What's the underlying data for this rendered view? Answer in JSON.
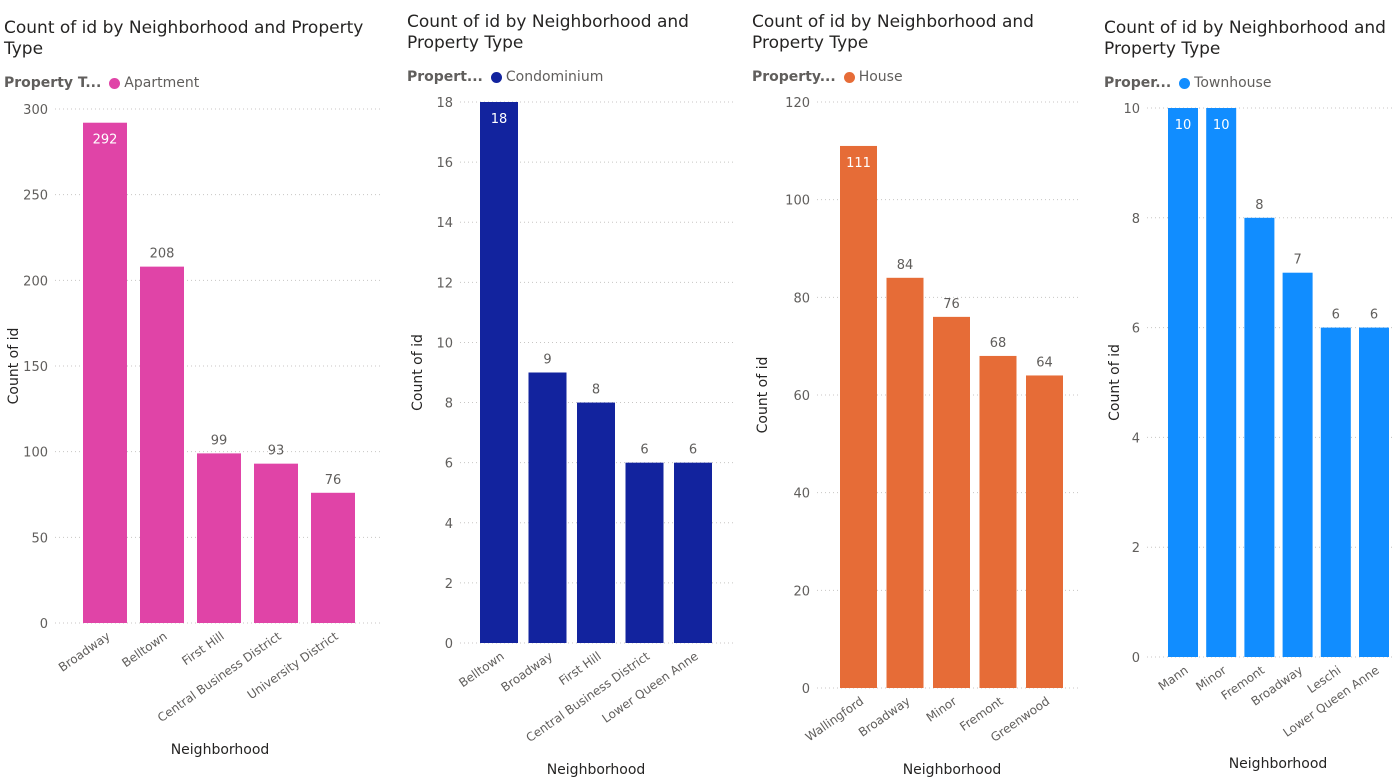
{
  "chart_data": [
    {
      "type": "bar",
      "title": "Count of id by Neighborhood and Property Type",
      "legend": {
        "title": "Property T...",
        "label": "Apartment"
      },
      "xlabel": "Neighborhood",
      "ylabel": "Count of id",
      "ylim": [
        0,
        300
      ],
      "yticks": [
        0,
        50,
        100,
        150,
        200,
        250,
        300
      ],
      "categories": [
        "Broadway",
        "Belltown",
        "First Hill",
        "Central Business District",
        "University District"
      ],
      "values": [
        292,
        208,
        99,
        93,
        76
      ],
      "color": "#e044a7",
      "grid": true,
      "legend_position": "top-left"
    },
    {
      "type": "bar",
      "title": "Count of id by Neighborhood and Property Type",
      "legend": {
        "title": "Propert...",
        "label": "Condominium"
      },
      "xlabel": "Neighborhood",
      "ylabel": "Count of id",
      "ylim": [
        0,
        18
      ],
      "yticks": [
        0,
        2,
        4,
        6,
        8,
        10,
        12,
        14,
        16,
        18
      ],
      "categories": [
        "Belltown",
        "Broadway",
        "First Hill",
        "Central Business District",
        "Lower Queen Anne"
      ],
      "values": [
        18,
        9,
        8,
        6,
        6
      ],
      "color": "#12239e",
      "grid": true,
      "legend_position": "top-left"
    },
    {
      "type": "bar",
      "title": "Count of id by Neighborhood and Property Type",
      "legend": {
        "title": "Property...",
        "label": "House"
      },
      "xlabel": "Neighborhood",
      "ylabel": "Count of id",
      "ylim": [
        0,
        120
      ],
      "yticks": [
        0,
        20,
        40,
        60,
        80,
        100,
        120
      ],
      "categories": [
        "Wallingford",
        "Broadway",
        "Minor",
        "Fremont",
        "Greenwood"
      ],
      "values": [
        111,
        84,
        76,
        68,
        64
      ],
      "color": "#e66c37",
      "grid": true,
      "legend_position": "top-left"
    },
    {
      "type": "bar",
      "title": "Count of id by Neighborhood and Property Type",
      "legend": {
        "title": "Proper...",
        "label": "Townhouse"
      },
      "xlabel": "Neighborhood",
      "ylabel": "Count of id",
      "ylim": [
        0,
        10
      ],
      "yticks": [
        0,
        2,
        4,
        6,
        8,
        10
      ],
      "categories": [
        "Mann",
        "Minor",
        "Fremont",
        "Broadway",
        "Leschi",
        "Lower Queen Anne"
      ],
      "values": [
        10,
        10,
        8,
        7,
        6,
        6
      ],
      "color": "#118dff",
      "grid": true,
      "legend_position": "top-left"
    }
  ]
}
